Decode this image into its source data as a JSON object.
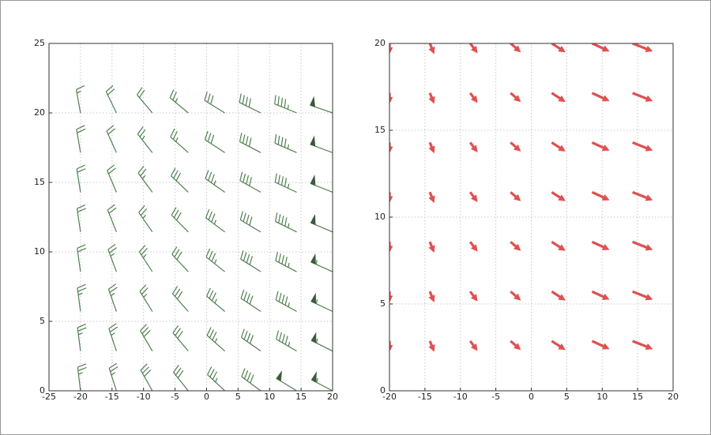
{
  "chart_data": [
    {
      "type": "barbs",
      "color": "#4f7f4f",
      "flag_color": "#3c5a3c",
      "grid": true,
      "xlim": [
        -25,
        20
      ],
      "ylim": [
        0,
        25
      ],
      "xticks": [
        -25,
        -20,
        -15,
        -10,
        -5,
        0,
        5,
        10,
        15,
        20
      ],
      "yticks": [
        0,
        5,
        10,
        15,
        20,
        25
      ],
      "x": [
        -20,
        -14.3,
        -8.6,
        -2.9,
        2.9,
        8.6,
        14.3,
        20
      ],
      "y": [
        0,
        2.86,
        5.71,
        8.57,
        11.43,
        14.29,
        17.14,
        20
      ],
      "u": [
        [
          3,
          8,
          14,
          20,
          27,
          34,
          41,
          48
        ],
        [
          3,
          8,
          14,
          20,
          27,
          34,
          41,
          48
        ],
        [
          3,
          8,
          14,
          20,
          27,
          34,
          41,
          48
        ],
        [
          3,
          8,
          14,
          20,
          27,
          34,
          41,
          48
        ],
        [
          3,
          8,
          14,
          20,
          27,
          34,
          41,
          48
        ],
        [
          3,
          8,
          14,
          20,
          27,
          34,
          41,
          48
        ],
        [
          3,
          8,
          14,
          20,
          27,
          34,
          41,
          48
        ],
        [
          3,
          8,
          14,
          20,
          27,
          34,
          41,
          48
        ]
      ],
      "v": [
        [
          -25,
          -25,
          -25,
          -25,
          -25,
          -25,
          -25,
          -25
        ],
        [
          -23.8,
          -23.8,
          -23.8,
          -23.8,
          -23.8,
          -23.8,
          -23.8,
          -23.8
        ],
        [
          -22.6,
          -22.6,
          -22.6,
          -22.6,
          -22.6,
          -22.6,
          -22.6,
          -22.6
        ],
        [
          -21.4,
          -21.4,
          -21.4,
          -21.4,
          -21.4,
          -21.4,
          -21.4,
          -21.4
        ],
        [
          -20.2,
          -20.2,
          -20.2,
          -20.2,
          -20.2,
          -20.2,
          -20.2,
          -20.2
        ],
        [
          -19,
          -19,
          -19,
          -19,
          -19,
          -19,
          -19,
          -19
        ],
        [
          -17.8,
          -17.8,
          -17.8,
          -17.8,
          -17.8,
          -17.8,
          -17.8,
          -17.8
        ],
        [
          -16.6,
          -16.6,
          -16.6,
          -16.6,
          -16.6,
          -16.6,
          -16.6,
          -16.6
        ]
      ]
    },
    {
      "type": "quiver",
      "color": "#e05050",
      "grid": true,
      "xlim": [
        -20,
        20
      ],
      "ylim": [
        0,
        20
      ],
      "xticks": [
        -20,
        -15,
        -10,
        -5,
        0,
        5,
        10,
        15,
        20
      ],
      "yticks": [
        0,
        5,
        10,
        15,
        20
      ],
      "x": [
        -20,
        -14.3,
        -8.6,
        -2.9,
        2.9,
        8.6,
        14.3
      ],
      "y": [
        2.86,
        5.71,
        8.57,
        11.43,
        14.29,
        17.14,
        20
      ],
      "u": [
        [
          0,
          0.6,
          1.0,
          1.4,
          1.9,
          2.4,
          2.8
        ],
        [
          0,
          0.6,
          1.0,
          1.4,
          1.9,
          2.4,
          2.8
        ],
        [
          0,
          0.6,
          1.0,
          1.4,
          1.9,
          2.4,
          2.8
        ],
        [
          0,
          0.6,
          1.0,
          1.4,
          1.9,
          2.4,
          2.8
        ],
        [
          0,
          0.6,
          1.0,
          1.4,
          1.9,
          2.4,
          2.8
        ],
        [
          0,
          0.6,
          1.0,
          1.4,
          1.9,
          2.4,
          2.8
        ],
        [
          0,
          0.6,
          1.0,
          1.4,
          1.9,
          2.4,
          2.8
        ]
      ],
      "v": [
        [
          -0.6,
          -0.6,
          -0.55,
          -0.5,
          -0.5,
          -0.45,
          -0.45
        ],
        [
          -0.6,
          -0.6,
          -0.55,
          -0.5,
          -0.5,
          -0.45,
          -0.45
        ],
        [
          -0.6,
          -0.6,
          -0.55,
          -0.5,
          -0.5,
          -0.45,
          -0.45
        ],
        [
          -0.6,
          -0.6,
          -0.55,
          -0.5,
          -0.5,
          -0.45,
          -0.45
        ],
        [
          -0.6,
          -0.6,
          -0.55,
          -0.5,
          -0.5,
          -0.45,
          -0.45
        ],
        [
          -0.6,
          -0.6,
          -0.55,
          -0.5,
          -0.5,
          -0.45,
          -0.45
        ],
        [
          -0.6,
          -0.6,
          -0.55,
          -0.5,
          -0.5,
          -0.45,
          -0.45
        ]
      ]
    }
  ]
}
